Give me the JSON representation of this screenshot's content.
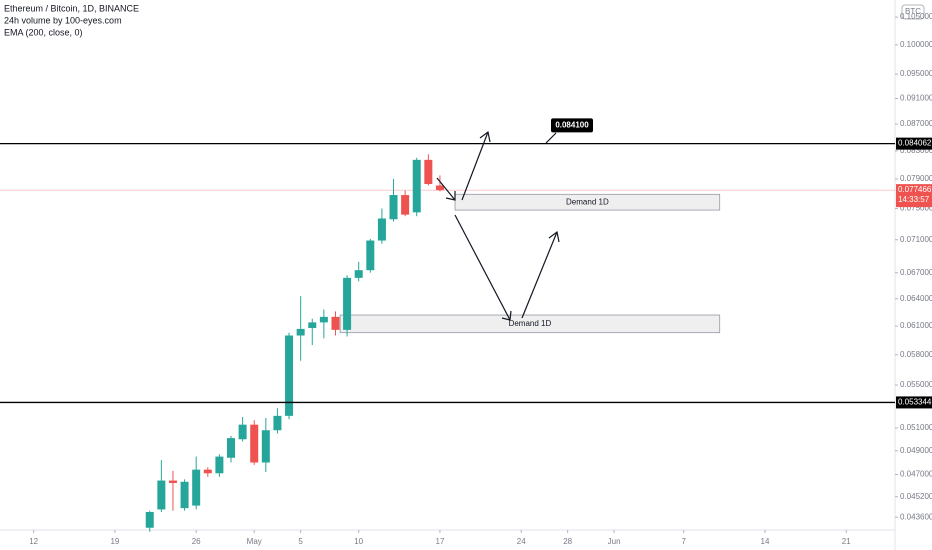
{
  "chart_data": {
    "type": "candlestick",
    "title": "Ethereum / Bitcoin, 1D, BINANCE",
    "subtitle": "24h volume by 100-eyes.com",
    "indicator": "EMA (200, close, 0)",
    "currency": "BTC",
    "log_scale": true,
    "up_color": "#26a69a",
    "down_color": "#ef5350",
    "categories": [
      null,
      null,
      null,
      null,
      null,
      null,
      null,
      null,
      null,
      null,
      null,
      null,
      null,
      null,
      null,
      null,
      null,
      null,
      null,
      null,
      null,
      null,
      null,
      null,
      null,
      null
    ],
    "open": [
      0.0428,
      0.0442,
      0.0465,
      0.0443,
      0.0445,
      0.0474,
      0.0471,
      0.0484,
      0.05,
      0.0513,
      0.048,
      0.0508,
      0.0521,
      0.06,
      0.0608,
      0.0614,
      0.062,
      0.0606,
      0.0664,
      0.0673,
      0.0709,
      0.0736,
      0.0768,
      0.0745,
      0.0817,
      0.0781
    ],
    "high": [
      0.0441,
      0.0482,
      0.0473,
      0.0466,
      0.0485,
      0.0476,
      0.0487,
      0.0503,
      0.052,
      0.0517,
      0.0519,
      0.0528,
      0.0603,
      0.0643,
      0.0618,
      0.0628,
      0.0626,
      0.0667,
      0.0683,
      0.0711,
      0.075,
      0.079,
      0.0774,
      0.082,
      0.0825,
      0.0795
    ],
    "low": [
      0.0425,
      0.044,
      0.0441,
      0.0441,
      0.0442,
      0.0468,
      0.0468,
      0.048,
      0.0498,
      0.0478,
      0.0472,
      0.0505,
      0.0518,
      0.0574,
      0.059,
      0.0597,
      0.06,
      0.0599,
      0.066,
      0.067,
      0.0705,
      0.0733,
      0.074,
      0.074,
      0.0781,
      0.0773
    ],
    "close": [
      0.044,
      0.0465,
      0.0463,
      0.0464,
      0.0474,
      0.0471,
      0.0485,
      0.0501,
      0.0513,
      0.048,
      0.0508,
      0.0521,
      0.06,
      0.0607,
      0.0614,
      0.062,
      0.0606,
      0.0664,
      0.0673,
      0.0709,
      0.0737,
      0.0768,
      0.0742,
      0.0817,
      0.0783,
      0.077466
    ],
    "xlim": [
      -12.9,
      64.2
    ],
    "xticks": [
      {
        "value": -10,
        "label": "12"
      },
      {
        "value": -3,
        "label": "19"
      },
      {
        "value": 4,
        "label": "26"
      },
      {
        "value": 9,
        "label": "May"
      },
      {
        "value": 13,
        "label": "5"
      },
      {
        "value": 18,
        "label": "10"
      },
      {
        "value": 25,
        "label": "17"
      },
      {
        "value": 32,
        "label": "24"
      },
      {
        "value": 36,
        "label": "28"
      },
      {
        "value": 40,
        "label": "Jun"
      },
      {
        "value": 46,
        "label": "7"
      },
      {
        "value": 53,
        "label": "14"
      },
      {
        "value": 60,
        "label": "21"
      }
    ],
    "ylim": [
      0.04263,
      0.1082
    ],
    "yticks": [
      {
        "value": 0.105,
        "label": "0.105000"
      },
      {
        "value": 0.1,
        "label": "0.100000"
      },
      {
        "value": 0.095,
        "label": "0.095000"
      },
      {
        "value": 0.091,
        "label": "0.091000"
      },
      {
        "value": 0.087,
        "label": "0.087000"
      },
      {
        "value": 0.083,
        "label": "0.083000"
      },
      {
        "value": 0.079,
        "label": "0.079000"
      },
      {
        "value": 0.075,
        "label": "0.075000"
      },
      {
        "value": 0.071,
        "label": "0.071000"
      },
      {
        "value": 0.067,
        "label": "0.067000"
      },
      {
        "value": 0.064,
        "label": "0.064000"
      },
      {
        "value": 0.061,
        "label": "0.061000"
      },
      {
        "value": 0.058,
        "label": "0.058000"
      },
      {
        "value": 0.055,
        "label": "0.055000"
      },
      {
        "value": 0.051,
        "label": "0.051000"
      },
      {
        "value": 0.049,
        "label": "0.049000"
      },
      {
        "value": 0.047,
        "label": "0.047000"
      },
      {
        "value": 0.0452,
        "label": "0.045200"
      },
      {
        "value": 0.0436,
        "label": "0.043600"
      }
    ],
    "levels": [
      {
        "value": 0.084062,
        "label": "0.084062"
      },
      {
        "value": 0.053344,
        "label": "0.053344"
      }
    ],
    "price_line": {
      "value": 0.077466,
      "label": "0.077466",
      "countdown": "14:33:57"
    },
    "annotation": {
      "value": 0.0841,
      "label": "0.084100"
    },
    "zones": [
      {
        "label": "Demand 1D",
        "x0": 26.3,
        "x1": 49.1,
        "top": 0.0769,
        "bottom": 0.0748
      },
      {
        "label": "Demand 1D",
        "x0": 16.4,
        "x1": 49.1,
        "top": 0.0622,
        "bottom": 0.0603
      }
    ]
  }
}
